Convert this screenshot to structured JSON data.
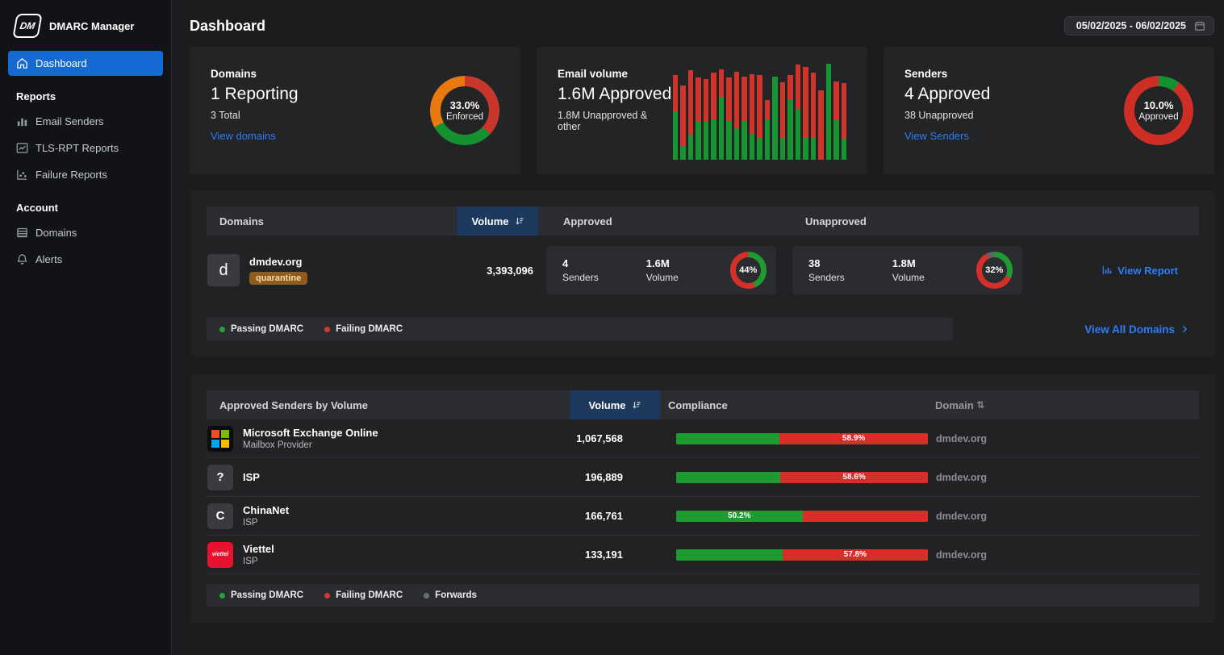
{
  "app": {
    "name": "DMARC Manager",
    "logo_text": "DM"
  },
  "sidebar": {
    "dashboard": {
      "label": "Dashboard"
    },
    "sections": [
      {
        "label": "Reports",
        "items": [
          {
            "label": "Email Senders"
          },
          {
            "label": "TLS-RPT Reports"
          },
          {
            "label": "Failure Reports"
          }
        ]
      },
      {
        "label": "Account",
        "items": [
          {
            "label": "Domains"
          },
          {
            "label": "Alerts"
          }
        ]
      }
    ]
  },
  "header": {
    "title": "Dashboard",
    "date_range": "05/02/2025 - 06/02/2025"
  },
  "cards": {
    "domains": {
      "title": "Domains",
      "value": "1 Reporting",
      "subtext": "3 Total",
      "link": "View domains",
      "donut_center_value": "33.0%",
      "donut_center_label": "Enforced"
    },
    "email_volume": {
      "title": "Email volume",
      "value": "1.6M Approved",
      "subtext": "1.8M Unapproved & other"
    },
    "senders": {
      "title": "Senders",
      "value": "4 Approved",
      "subtext": "38 Unapproved",
      "link": "View Senders",
      "donut_center_value": "10.0%",
      "donut_center_label": "Approved"
    }
  },
  "domains_panel": {
    "columns": {
      "domains": "Domains",
      "volume": "Volume",
      "approved": "Approved",
      "unapproved": "Unapproved"
    },
    "row": {
      "avatar": "d",
      "domain": "dmdev.org",
      "policy_badge": "quarantine",
      "volume": "3,393,096",
      "approved": {
        "senders": "4",
        "senders_label": "Senders",
        "volume": "1.6M",
        "volume_label": "Volume",
        "donut_label": "44%"
      },
      "unapproved": {
        "senders": "38",
        "senders_label": "Senders",
        "volume": "1.8M",
        "volume_label": "Volume",
        "donut_label": "32%"
      },
      "view_report": "View Report"
    },
    "legend": [
      {
        "label": "Passing DMARC",
        "color": "#21a33a"
      },
      {
        "label": "Failing DMARC",
        "color": "#d23b2e"
      }
    ],
    "view_all": "View All Domains"
  },
  "senders_panel": {
    "columns": {
      "title": "Approved Senders by Volume",
      "volume": "Volume",
      "compliance": "Compliance",
      "domain": "Domain"
    },
    "rows": [
      {
        "name": "Microsoft Exchange Online",
        "type": "Mailbox Provider",
        "icon": "microsoft-logo",
        "volume": "1,067,568",
        "domain": "dmdev.org"
      },
      {
        "name": "ISP",
        "type": "",
        "icon": "question-mark",
        "volume": "196,889",
        "domain": "dmdev.org"
      },
      {
        "name": "ChinaNet",
        "type": "ISP",
        "icon": "letter-c",
        "volume": "166,761",
        "domain": "dmdev.org"
      },
      {
        "name": "Viettel",
        "type": "ISP",
        "icon": "viettel-logo",
        "volume": "133,191",
        "domain": "dmdev.org"
      }
    ],
    "legend": [
      {
        "label": "Passing DMARC",
        "color": "#21a33a"
      },
      {
        "label": "Failing DMARC",
        "color": "#d23b2e"
      },
      {
        "label": "Forwards",
        "color": "#6b6f73"
      }
    ]
  },
  "chart_data": [
    {
      "id": "domains-enforcement-donut",
      "type": "pie",
      "title": "Domains enforcement split",
      "center_value": "33.0%",
      "center_label": "Enforced",
      "slices": [
        {
          "label": "failing/none",
          "value": 37,
          "color": "#c9372c"
        },
        {
          "label": "passing",
          "value": 30,
          "color": "#159132"
        },
        {
          "label": "other",
          "value": 33,
          "color": "#e8790f"
        }
      ]
    },
    {
      "id": "email-volume-bars",
      "type": "bar",
      "stacked": true,
      "grid": false,
      "title": "Email volume per day (relative heights, % of chart)",
      "x": [
        1,
        2,
        3,
        4,
        5,
        6,
        7,
        8,
        9,
        10,
        11,
        12,
        13,
        14,
        15,
        16,
        17,
        18,
        19,
        20,
        21,
        22,
        23
      ],
      "series": [
        {
          "name": "passing (green)",
          "color": "#169432",
          "values": [
            49,
            14,
            25,
            39,
            39,
            41,
            64,
            39,
            32,
            39,
            26,
            22,
            41,
            85,
            22,
            61,
            52,
            22,
            22,
            0,
            98,
            40,
            21
          ]
        },
        {
          "name": "failing (red)",
          "color": "#d1342b",
          "values": [
            37,
            62,
            66,
            45,
            43,
            48,
            28,
            45,
            58,
            46,
            61,
            64,
            20,
            0,
            57,
            25,
            45,
            73,
            67,
            71,
            0,
            40,
            57
          ]
        }
      ]
    },
    {
      "id": "senders-approved-donut",
      "type": "pie",
      "center_value": "10.0%",
      "center_label": "Approved",
      "slices": [
        {
          "label": "approved",
          "value": 10,
          "color": "#159132"
        },
        {
          "label": "unapproved",
          "value": 90,
          "color": "#cf2e24"
        }
      ]
    },
    {
      "id": "approved-pass-donut",
      "type": "pie",
      "label": "44%",
      "slices": [
        {
          "label": "passing",
          "value": 44,
          "color": "#1e9b31"
        },
        {
          "label": "failing",
          "value": 56,
          "color": "#d62f2a"
        }
      ]
    },
    {
      "id": "unapproved-pass-donut",
      "type": "pie",
      "label": "32%",
      "slices": [
        {
          "label": "passing",
          "value": 32,
          "color": "#1e9b31"
        },
        {
          "label": "failing",
          "value": 61,
          "color": "#d62f2a"
        },
        {
          "label": "forwards",
          "value": 7,
          "color": "#5f6368"
        }
      ]
    },
    {
      "id": "compliance-bars",
      "type": "bar",
      "stacked": true,
      "categories": [
        "Microsoft Exchange Online",
        "ISP",
        "ChinaNet",
        "Viettel"
      ],
      "series": [
        {
          "name": "passing (green)",
          "values": [
            41.1,
            41.4,
            50.2,
            42.2
          ]
        },
        {
          "name": "failing (red)",
          "values": [
            58.9,
            58.6,
            49.8,
            57.8
          ]
        }
      ],
      "labels": [
        {
          "text": "58.9%",
          "on": "red"
        },
        {
          "text": "58.6%",
          "on": "red"
        },
        {
          "text": "50.2%",
          "on": "green"
        },
        {
          "text": "57.8%",
          "on": "red"
        }
      ]
    }
  ]
}
